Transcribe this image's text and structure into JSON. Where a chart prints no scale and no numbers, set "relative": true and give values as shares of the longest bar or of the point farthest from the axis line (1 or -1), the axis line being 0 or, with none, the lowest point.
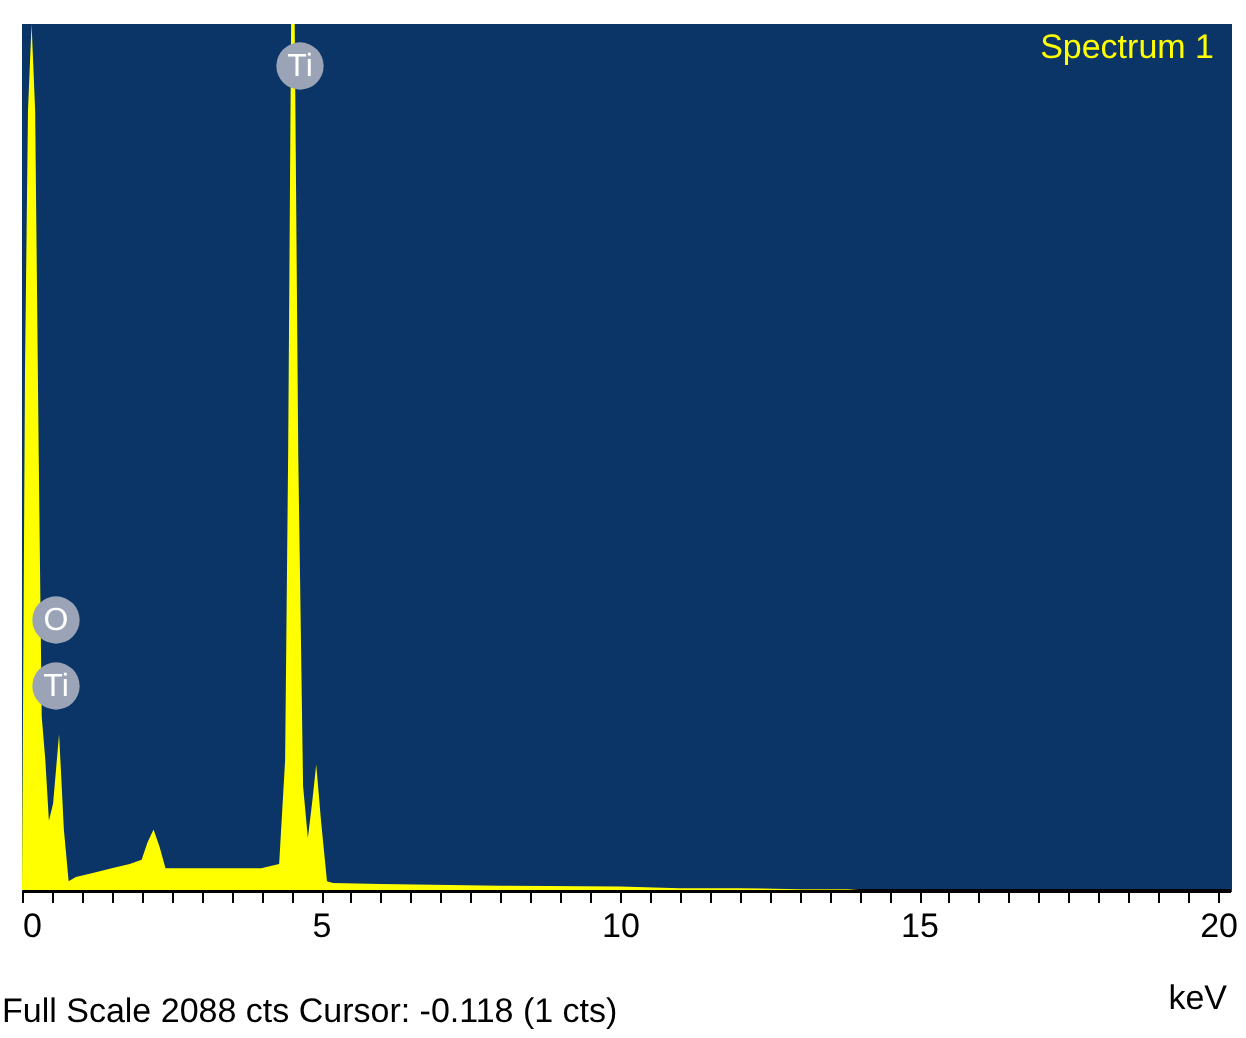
{
  "chart_data": {
    "type": "area",
    "relative": true,
    "xlabel": "keV",
    "xlim": [
      0,
      20.2
    ],
    "xticks": [
      0,
      {
        "value": 0.5,
        "label": null
      },
      {
        "value": 1,
        "label": null
      },
      {
        "value": 1.5,
        "label": null
      },
      {
        "value": 2,
        "label": null
      },
      {
        "value": 2.5,
        "label": null
      },
      {
        "value": 3,
        "label": null
      },
      {
        "value": 3.5,
        "label": null
      },
      {
        "value": 4,
        "label": null
      },
      {
        "value": 4.5,
        "label": null
      },
      5,
      {
        "value": 5.5,
        "label": null
      },
      {
        "value": 6,
        "label": null
      },
      {
        "value": 6.5,
        "label": null
      },
      {
        "value": 7,
        "label": null
      },
      {
        "value": 7.5,
        "label": null
      },
      {
        "value": 8,
        "label": null
      },
      {
        "value": 8.5,
        "label": null
      },
      {
        "value": 9,
        "label": null
      },
      {
        "value": 9.5,
        "label": null
      },
      10,
      {
        "value": 10.5,
        "label": null
      },
      {
        "value": 11,
        "label": null
      },
      {
        "value": 11.5,
        "label": null
      },
      {
        "value": 12,
        "label": null
      },
      {
        "value": 12.5,
        "label": null
      },
      {
        "value": 13,
        "label": null
      },
      {
        "value": 13.5,
        "label": null
      },
      {
        "value": 14,
        "label": null
      },
      {
        "value": 14.5,
        "label": null
      },
      15,
      {
        "value": 15.5,
        "label": null
      },
      {
        "value": 16,
        "label": null
      },
      {
        "value": 16.5,
        "label": null
      },
      {
        "value": 17,
        "label": null
      },
      {
        "value": 17.5,
        "label": null
      },
      {
        "value": 18,
        "label": null
      },
      {
        "value": 18.5,
        "label": null
      },
      {
        "value": 19,
        "label": null
      },
      {
        "value": 19.5,
        "label": null
      },
      20
    ],
    "series": [
      {
        "name": "Spectrum 1",
        "color": "#ffff00",
        "x": [
          0,
          0.05,
          0.1,
          0.16,
          0.22,
          0.28,
          0.33,
          0.39,
          0.45,
          0.52,
          0.62,
          0.7,
          0.78,
          0.9,
          1.2,
          1.5,
          1.8,
          2.0,
          2.1,
          2.2,
          2.3,
          2.4,
          3.0,
          3.5,
          4.0,
          4.3,
          4.4,
          4.45,
          4.5,
          4.56,
          4.62,
          4.7,
          4.78,
          4.85,
          4.92,
          5.0,
          5.1,
          5.2,
          6.0,
          8.0,
          10.0,
          11.0,
          12.0,
          13.0,
          13.8,
          14.0,
          20.0
        ],
        "values": [
          0,
          0.6,
          0.9,
          1,
          0.9,
          0.5,
          0.2,
          0.15,
          0.08,
          0.1,
          0.18,
          0.07,
          0.01,
          0.015,
          0.02,
          0.025,
          0.03,
          0.035,
          0.055,
          0.07,
          0.05,
          0.025,
          0.025,
          0.025,
          0.025,
          0.03,
          0.15,
          0.5,
          1,
          1,
          0.5,
          0.12,
          0.06,
          0.1,
          0.145,
          0.08,
          0.01,
          0.008,
          0.007,
          0.005,
          0.004,
          0.002,
          0.002,
          0.001,
          0.001,
          0,
          0
        ]
      }
    ],
    "annotations": [
      "Ti",
      "O",
      "Ti",
      "Full Scale 2088 cts Cursor: -0.118  (1 cts)"
    ]
  }
}
